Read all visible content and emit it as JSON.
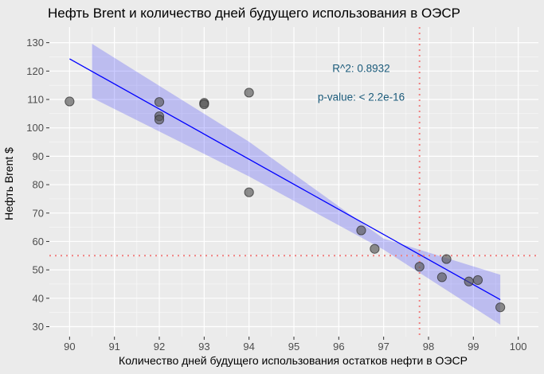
{
  "chart_data": {
    "type": "scatter",
    "title": "Нефть Brent и количество дней будущего использования в ОЭСР",
    "xlabel": "Количество дней будущего использования остатков нефти в ОЭСР",
    "ylabel": "Нефть Brent $",
    "xlim": [
      89.55,
      100.45
    ],
    "ylim": [
      26.5,
      135.5
    ],
    "x_ticks": [
      90,
      91,
      92,
      93,
      94,
      95,
      96,
      97,
      98,
      99,
      100
    ],
    "y_ticks": [
      30,
      40,
      50,
      60,
      70,
      80,
      90,
      100,
      110,
      120,
      130
    ],
    "grid": true,
    "points": [
      {
        "x": 90.0,
        "y": 109.3
      },
      {
        "x": 92.0,
        "y": 109.1
      },
      {
        "x": 92.0,
        "y": 104.1
      },
      {
        "x": 92.0,
        "y": 102.9
      },
      {
        "x": 93.0,
        "y": 108.8
      },
      {
        "x": 93.0,
        "y": 108.3
      },
      {
        "x": 94.0,
        "y": 112.4
      },
      {
        "x": 94.0,
        "y": 77.3
      },
      {
        "x": 96.5,
        "y": 63.9
      },
      {
        "x": 96.8,
        "y": 57.4
      },
      {
        "x": 97.8,
        "y": 51.1
      },
      {
        "x": 98.3,
        "y": 47.4
      },
      {
        "x": 98.4,
        "y": 53.8
      },
      {
        "x": 98.9,
        "y": 45.9
      },
      {
        "x": 99.1,
        "y": 46.4
      },
      {
        "x": 99.6,
        "y": 36.8
      }
    ],
    "regression_line": {
      "x": [
        90.0,
        99.6
      ],
      "y": [
        124.3,
        39.5
      ],
      "color": "#0000ff"
    },
    "confidence_band": {
      "x": [
        90.5,
        94.0,
        97.0,
        99.6
      ],
      "upper": [
        129.6,
        95.1,
        61.0,
        48.3
      ],
      "lower": [
        110.6,
        82.9,
        57.1,
        30.7
      ],
      "color": "#0000ff"
    },
    "reference_lines": {
      "vertical_x": 97.8,
      "horizontal_y": 55.0,
      "color": "#f08080"
    },
    "annotations": [
      {
        "text": "R^2: 0.8932",
        "x": 96.5,
        "y": 119.6
      },
      {
        "text": "p-value: < 2.2e-16",
        "x": 96.5,
        "y": 109.6
      }
    ],
    "colors": {
      "panel_background": "#ebebeb",
      "grid": "#ffffff",
      "point_fill": "#555555",
      "annotation_text": "#1a5a7a"
    }
  }
}
